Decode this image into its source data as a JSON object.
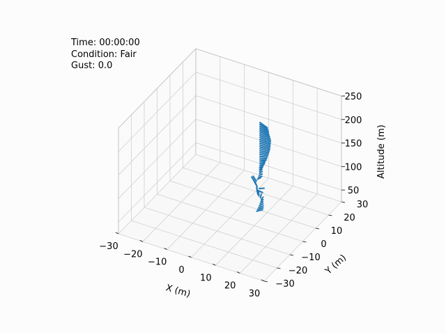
{
  "status": {
    "time": "Time: 00:00:00",
    "condition": "Condition: Fair",
    "gust": "Gust: 0.0"
  },
  "colors": {
    "background": "#fcfcfc",
    "series": "#1f77b4",
    "grid": "#d0d0d0",
    "pane_light": "#f2f2f2",
    "pane_dark": "#e6e6e6"
  },
  "chart_data": {
    "type": "3d-quiver",
    "xlabel": "X (m)",
    "ylabel": "Y (m)",
    "zlabel": "Altitude (m)",
    "xlim": [
      -30,
      30
    ],
    "ylim": [
      -30,
      30
    ],
    "zlim": [
      25,
      250
    ],
    "xticks": [
      -30,
      -20,
      -10,
      0,
      10,
      20,
      30
    ],
    "yticks": [
      -30,
      -20,
      -10,
      0,
      10,
      20,
      30
    ],
    "zticks": [
      50,
      100,
      150,
      200,
      250
    ],
    "grid": true,
    "series_color": "#1f77b4",
    "segments": [
      {
        "z": 42,
        "x": 8.8,
        "y": 4.2,
        "dx": 1.2,
        "dy": 1.0,
        "dz": 1.5
      },
      {
        "z": 46,
        "x": 9.1,
        "y": 4.4,
        "dx": 1.1,
        "dy": 0.9,
        "dz": 1.5
      },
      {
        "z": 50,
        "x": 9.4,
        "y": 4.6,
        "dx": 0.9,
        "dy": 0.8,
        "dz": 1.5
      },
      {
        "z": 54,
        "x": 9.6,
        "y": 4.8,
        "dx": 0.7,
        "dy": 0.7,
        "dz": 1.5
      },
      {
        "z": 58,
        "x": 9.8,
        "y": 5.0,
        "dx": 0.5,
        "dy": 0.6,
        "dz": 1.5
      },
      {
        "z": 62,
        "x": 10.0,
        "y": 5.2,
        "dx": 0.3,
        "dy": 0.6,
        "dz": 1.5
      },
      {
        "z": 66,
        "x": 10.1,
        "y": 5.3,
        "dx": 0.1,
        "dy": 0.8,
        "dz": 1.5
      },
      {
        "z": 70,
        "x": 9.9,
        "y": 5.0,
        "dx": -0.4,
        "dy": 1.2,
        "dz": 1.5
      },
      {
        "z": 74,
        "x": 9.5,
        "y": 4.6,
        "dx": -1.0,
        "dy": 1.6,
        "dz": 1.5
      },
      {
        "z": 78,
        "x": 9.2,
        "y": 4.3,
        "dx": -1.2,
        "dy": 1.8,
        "dz": 1.5
      },
      {
        "z": 82,
        "x": 9.1,
        "y": 4.2,
        "dx": -1.1,
        "dy": 1.6,
        "dz": 1.5
      },
      {
        "z": 86,
        "x": 9.3,
        "y": 4.4,
        "dx": 1.6,
        "dy": -0.6,
        "dz": 1.5
      },
      {
        "z": 90,
        "x": 9.6,
        "y": 4.7,
        "dx": 1.2,
        "dy": 0.4,
        "dz": 1.5
      },
      {
        "z": 94,
        "x": 9.0,
        "y": 4.2,
        "dx": -1.4,
        "dy": 1.4,
        "dz": 1.5
      },
      {
        "z": 98,
        "x": 8.7,
        "y": 4.0,
        "dx": -1.8,
        "dy": 1.6,
        "dz": 1.5
      },
      {
        "z": 102,
        "x": 8.5,
        "y": 3.9,
        "dx": -2.0,
        "dy": 1.6,
        "dz": 1.5
      },
      {
        "z": 106,
        "x": 8.7,
        "y": 4.1,
        "dx": -1.6,
        "dy": 1.2,
        "dz": 1.5
      },
      {
        "z": 110,
        "x": 9.0,
        "y": 4.3,
        "dx": 0.6,
        "dy": 0.6,
        "dz": 1.5
      },
      {
        "z": 114,
        "x": 9.3,
        "y": 4.6,
        "dx": 0.8,
        "dy": 0.4,
        "dz": 1.5
      },
      {
        "z": 118,
        "x": 9.5,
        "y": 4.8,
        "dx": 0.6,
        "dy": 0.5,
        "dz": 1.5
      },
      {
        "z": 122,
        "x": 9.6,
        "y": 4.9,
        "dx": 0.4,
        "dy": 0.7,
        "dz": 1.5
      },
      {
        "z": 126,
        "x": 9.6,
        "y": 4.9,
        "dx": 0.3,
        "dy": 0.8,
        "dz": 1.5
      },
      {
        "z": 130,
        "x": 9.6,
        "y": 4.9,
        "dx": 0.4,
        "dy": 0.9,
        "dz": 1.5
      },
      {
        "z": 134,
        "x": 9.6,
        "y": 4.9,
        "dx": 0.6,
        "dy": 0.9,
        "dz": 1.5
      },
      {
        "z": 138,
        "x": 9.7,
        "y": 5.0,
        "dx": 0.8,
        "dy": 0.9,
        "dz": 1.5
      },
      {
        "z": 142,
        "x": 9.7,
        "y": 5.0,
        "dx": 1.0,
        "dy": 0.8,
        "dz": 1.5
      },
      {
        "z": 146,
        "x": 9.7,
        "y": 5.0,
        "dx": 1.2,
        "dy": 0.6,
        "dz": 1.5
      },
      {
        "z": 150,
        "x": 9.7,
        "y": 5.0,
        "dx": 1.6,
        "dy": 0.4,
        "dz": 1.5
      },
      {
        "z": 154,
        "x": 9.7,
        "y": 5.0,
        "dx": 1.8,
        "dy": 0.3,
        "dz": 1.5
      },
      {
        "z": 158,
        "x": 9.7,
        "y": 5.0,
        "dx": 2.0,
        "dy": 0.2,
        "dz": 1.5
      },
      {
        "z": 162,
        "x": 9.7,
        "y": 5.0,
        "dx": 2.2,
        "dy": 0.1,
        "dz": 1.5
      },
      {
        "z": 166,
        "x": 9.7,
        "y": 5.0,
        "dx": 2.4,
        "dy": 0.0,
        "dz": 1.5
      },
      {
        "z": 170,
        "x": 9.7,
        "y": 5.0,
        "dx": 2.6,
        "dy": -0.1,
        "dz": 1.5
      },
      {
        "z": 174,
        "x": 9.7,
        "y": 5.0,
        "dx": 2.8,
        "dy": -0.2,
        "dz": 1.5
      },
      {
        "z": 178,
        "x": 9.7,
        "y": 5.0,
        "dx": 3.0,
        "dy": -0.3,
        "dz": 1.5
      },
      {
        "z": 182,
        "x": 9.7,
        "y": 5.0,
        "dx": 3.1,
        "dy": -0.4,
        "dz": 1.5
      },
      {
        "z": 186,
        "x": 9.7,
        "y": 5.0,
        "dx": 3.2,
        "dy": -0.5,
        "dz": 1.5
      },
      {
        "z": 190,
        "x": 9.7,
        "y": 5.0,
        "dx": 3.3,
        "dy": -0.6,
        "dz": 1.5
      },
      {
        "z": 194,
        "x": 9.7,
        "y": 5.0,
        "dx": 3.4,
        "dy": -0.7,
        "dz": 1.5
      },
      {
        "z": 198,
        "x": 9.7,
        "y": 5.0,
        "dx": 3.5,
        "dy": -0.8,
        "dz": 1.5
      },
      {
        "z": 202,
        "x": 9.7,
        "y": 5.0,
        "dx": 3.6,
        "dy": -0.9,
        "dz": 1.5
      },
      {
        "z": 206,
        "x": 9.7,
        "y": 5.0,
        "dx": 3.5,
        "dy": -1.0,
        "dz": 1.5
      },
      {
        "z": 210,
        "x": 9.7,
        "y": 5.0,
        "dx": 3.4,
        "dy": -1.1,
        "dz": 1.5
      },
      {
        "z": 214,
        "x": 9.7,
        "y": 5.0,
        "dx": 3.3,
        "dy": -1.2,
        "dz": 1.5
      },
      {
        "z": 218,
        "x": 9.7,
        "y": 5.0,
        "dx": 3.2,
        "dy": -1.3,
        "dz": 1.5
      },
      {
        "z": 222,
        "x": 9.7,
        "y": 5.0,
        "dx": 3.2,
        "dy": -1.4,
        "dz": 1.5
      },
      {
        "z": 226,
        "x": 9.7,
        "y": 5.0,
        "dx": 3.1,
        "dy": -1.5,
        "dz": 1.5
      },
      {
        "z": 230,
        "x": 9.7,
        "y": 5.0,
        "dx": 3.0,
        "dy": -1.6,
        "dz": 1.5
      }
    ]
  }
}
